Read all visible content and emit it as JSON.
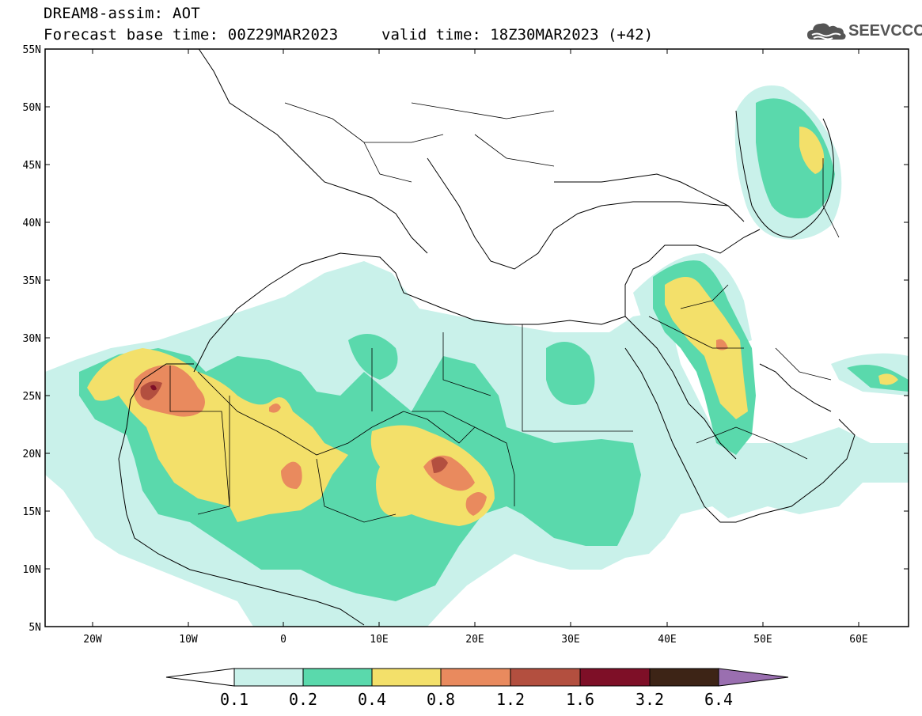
{
  "header": {
    "title_line1": "DREAM8-assim: AOT",
    "title_line2": "Forecast base time: 00Z29MAR2023",
    "valid_time": "valid time: 18Z30MAR2023 (+42)",
    "logo_text": "SEEVCCC"
  },
  "map": {
    "variable": "AOT",
    "lon_range": [
      -25,
      65
    ],
    "lat_range": [
      5,
      55
    ],
    "lat_labels": [
      "5N",
      "10N",
      "15N",
      "20N",
      "25N",
      "30N",
      "35N",
      "40N",
      "45N",
      "50N",
      "55N"
    ],
    "lon_labels": [
      "20W",
      "10W",
      "0",
      "10E",
      "20E",
      "30E",
      "40E",
      "50E",
      "60E"
    ]
  },
  "colorbar": {
    "labels": [
      "0.1",
      "0.2",
      "0.4",
      "0.8",
      "1.2",
      "1.6",
      "3.2",
      "6.4"
    ],
    "colors": [
      "#ffffff",
      "#c9f1ea",
      "#5ad9ac",
      "#f3e06a",
      "#e98a5e",
      "#b34f3f",
      "#7e0f27",
      "#3d2416",
      "#9a6fb0"
    ]
  },
  "colors": {
    "c1": "#c9f1ea",
    "c2": "#5ad9ac",
    "c3": "#f3e06a",
    "c4": "#e98a5e",
    "c5": "#b34f3f",
    "c6": "#7e0f27"
  }
}
